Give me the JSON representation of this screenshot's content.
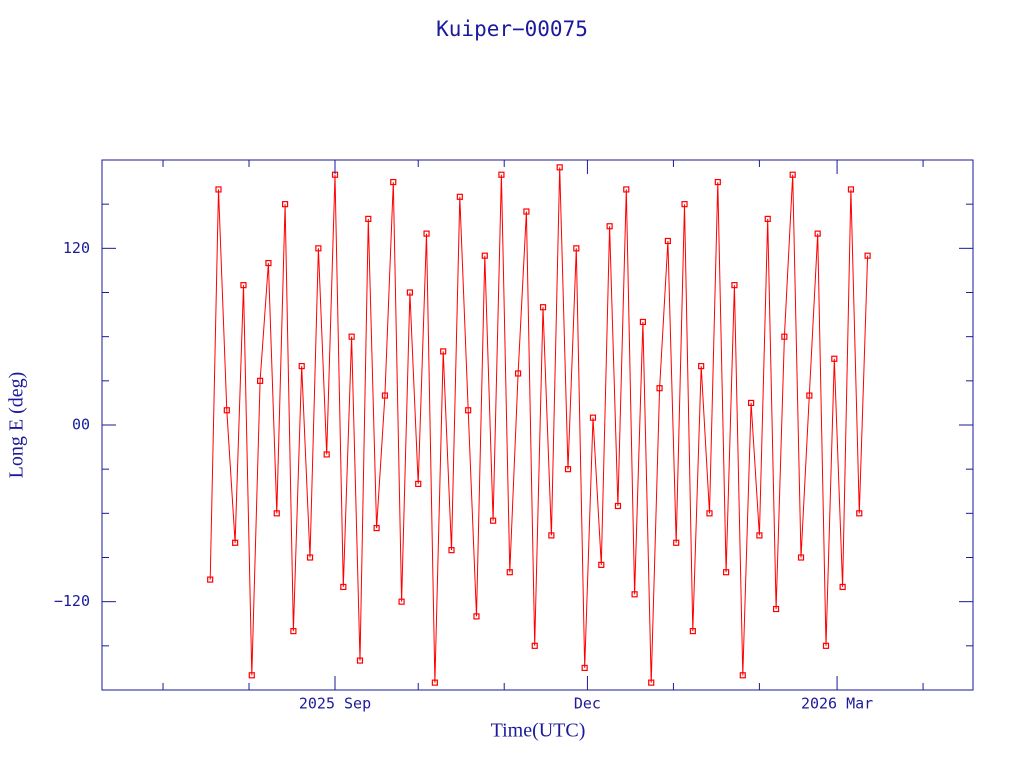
{
  "chart_data": {
    "type": "line",
    "title": "Kuiper−00075",
    "xlabel": "Time(UTC)",
    "ylabel": "Long E (deg)",
    "xlim": [
      "2025-06-09",
      "2026-04-19"
    ],
    "xticks": [
      {
        "value": "2025-09-01",
        "label": "2025 Sep"
      },
      {
        "value": "2025-12-01",
        "label": "Dec"
      },
      {
        "value": "2026-03-01",
        "label": "2026 Mar"
      }
    ],
    "xminorticks": [
      "2025-07-01",
      "2025-08-01",
      "2025-10-01",
      "2025-11-01",
      "2026-01-01",
      "2026-02-01",
      "2026-04-01"
    ],
    "ylim": [
      -180,
      180
    ],
    "yticks": [
      {
        "value": -120,
        "label": "−120"
      },
      {
        "value": 0,
        "label": "00"
      },
      120
    ],
    "yminorticks": [
      -150,
      -90,
      -60,
      -30,
      30,
      60,
      90,
      150
    ],
    "series": [
      {
        "name": "Kuiper−00075",
        "color": "#ff0000",
        "x": [
          "2025-07-18",
          "2025-07-21",
          "2025-07-24",
          "2025-07-27",
          "2025-07-30",
          "2025-08-02",
          "2025-08-05",
          "2025-08-08",
          "2025-08-11",
          "2025-08-14",
          "2025-08-17",
          "2025-08-20",
          "2025-08-23",
          "2025-08-26",
          "2025-08-29",
          "2025-09-01",
          "2025-09-04",
          "2025-09-07",
          "2025-09-10",
          "2025-09-13",
          "2025-09-16",
          "2025-09-19",
          "2025-09-22",
          "2025-09-25",
          "2025-09-28",
          "2025-10-01",
          "2025-10-04",
          "2025-10-07",
          "2025-10-10",
          "2025-10-13",
          "2025-10-16",
          "2025-10-19",
          "2025-10-22",
          "2025-10-25",
          "2025-10-28",
          "2025-10-31",
          "2025-11-03",
          "2025-11-06",
          "2025-11-09",
          "2025-11-12",
          "2025-11-15",
          "2025-11-18",
          "2025-11-21",
          "2025-11-24",
          "2025-11-27",
          "2025-11-30",
          "2025-12-03",
          "2025-12-06",
          "2025-12-09",
          "2025-12-12",
          "2025-12-15",
          "2025-12-18",
          "2025-12-21",
          "2025-12-24",
          "2025-12-27",
          "2025-12-30",
          "2026-01-02",
          "2026-01-05",
          "2026-01-08",
          "2026-01-11",
          "2026-01-14",
          "2026-01-17",
          "2026-01-20",
          "2026-01-23",
          "2026-01-26",
          "2026-01-29",
          "2026-02-01",
          "2026-02-04",
          "2026-02-07",
          "2026-02-10",
          "2026-02-13",
          "2026-02-16",
          "2026-02-19",
          "2026-02-22",
          "2026-02-25",
          "2026-02-28",
          "2026-03-03",
          "2026-03-06",
          "2026-03-09",
          "2026-03-12"
        ],
        "values": [
          -105,
          160,
          10,
          -80,
          95,
          -170,
          30,
          110,
          -60,
          150,
          -140,
          40,
          -90,
          120,
          -20,
          170,
          -110,
          60,
          -160,
          140,
          -70,
          20,
          165,
          -120,
          90,
          -40,
          130,
          -175,
          50,
          -85,
          155,
          10,
          -130,
          115,
          -65,
          170,
          -100,
          35,
          145,
          -150,
          80,
          -75,
          175,
          -30,
          120,
          -165,
          5,
          -95,
          135,
          -55,
          160,
          -115,
          70,
          -175,
          25,
          125,
          -80,
          150,
          -140,
          40,
          -60,
          165,
          -100,
          95,
          -170,
          15,
          -75,
          140,
          -125,
          60,
          170,
          -90,
          20,
          130,
          -150,
          45,
          -110,
          160,
          -60,
          115
        ]
      }
    ],
    "grid": false
  }
}
